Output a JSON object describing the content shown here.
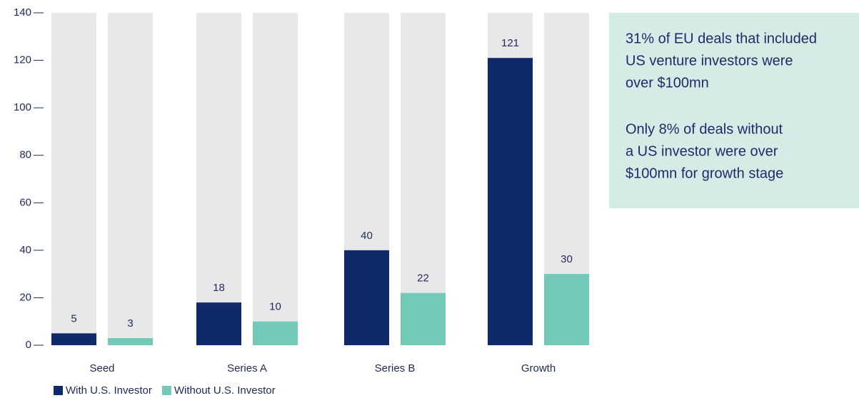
{
  "chart_data": {
    "type": "bar",
    "categories": [
      "Seed",
      "Series A",
      "Series B",
      "Growth"
    ],
    "series": [
      {
        "name": "With U.S. Investor",
        "color": "#0f2a6b",
        "values": [
          5,
          18,
          40,
          121
        ]
      },
      {
        "name": "Without U.S. Investor",
        "color": "#73c9b7",
        "values": [
          3,
          10,
          22,
          30
        ]
      }
    ],
    "background_color": "#e8e8ea",
    "ylim": [
      0,
      140
    ],
    "yticks": [
      0,
      20,
      40,
      60,
      80,
      100,
      120,
      140
    ],
    "annotations": [
      [
        "31% of EU deals that included",
        "US venture investors were",
        "over $100mn"
      ],
      [
        "Only 8% of deals without",
        "a US investor were over",
        "$100mn for growth stage"
      ]
    ]
  }
}
